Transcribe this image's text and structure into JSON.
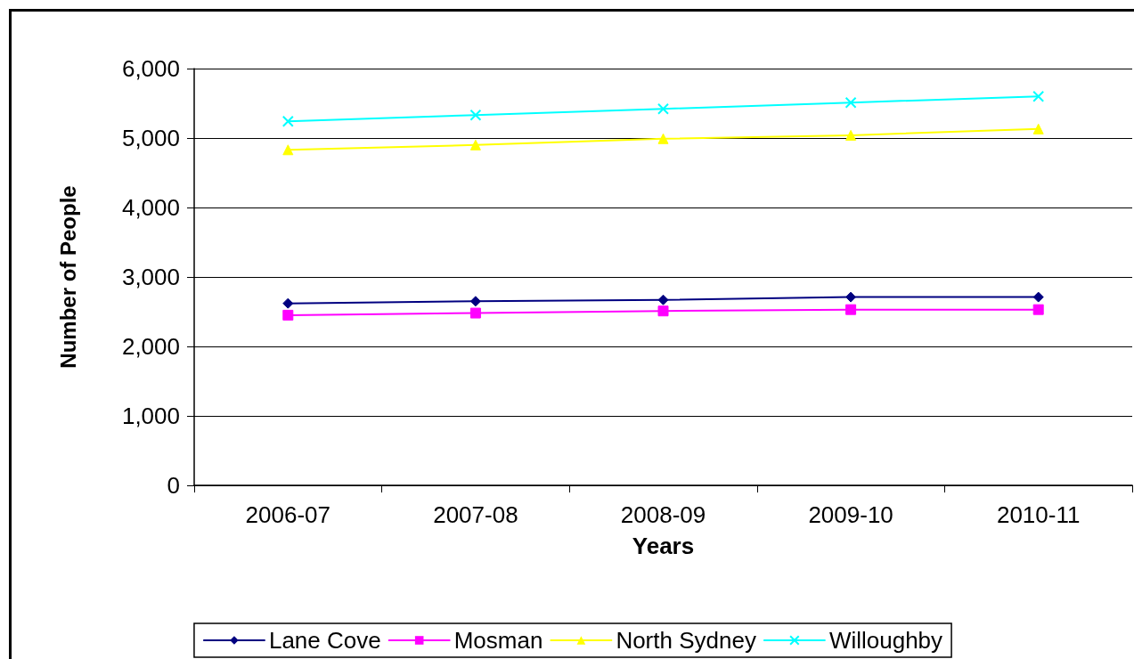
{
  "chart_data": {
    "type": "line",
    "xlabel": "Years",
    "ylabel": "Number of People",
    "categories": [
      "2006-07",
      "2007-08",
      "2008-09",
      "2009-10",
      "2010-11"
    ],
    "series": [
      {
        "name": "Lane Cove",
        "color": "#000080",
        "marker": "diamond",
        "values": [
          2620,
          2650,
          2670,
          2710,
          2710
        ]
      },
      {
        "name": "Mosman",
        "color": "#ff00ff",
        "marker": "square",
        "values": [
          2450,
          2480,
          2510,
          2530,
          2530
        ]
      },
      {
        "name": "North Sydney",
        "color": "#ffff00",
        "marker": "triangle",
        "values": [
          4830,
          4900,
          4990,
          5040,
          5130
        ]
      },
      {
        "name": "Willoughby",
        "color": "#00ffff",
        "marker": "cross",
        "values": [
          5240,
          5330,
          5420,
          5510,
          5600
        ]
      }
    ],
    "ylim": [
      0,
      6000
    ],
    "yticks": [
      0,
      {
        "value": 1000,
        "label": "1,000"
      },
      {
        "value": 2000,
        "label": "2,000"
      },
      {
        "value": 3000,
        "label": "3,000"
      },
      {
        "value": 4000,
        "label": "4,000"
      },
      {
        "value": 5000,
        "label": "5,000"
      },
      {
        "value": 6000,
        "label": "6,000"
      }
    ],
    "grid": "y",
    "legend": "bottom"
  }
}
